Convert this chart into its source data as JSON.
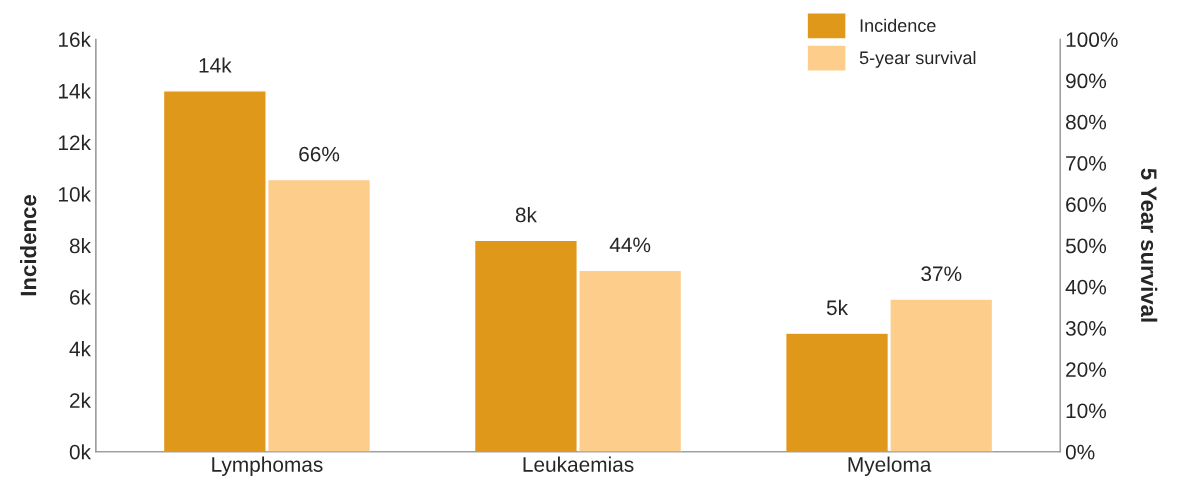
{
  "chart_data": {
    "type": "bar",
    "ylabel": "Incidence",
    "y2label": "5 Year survival",
    "categories": [
      "Lymphomas",
      "Leukaemias",
      "Myeloma"
    ],
    "series": [
      {
        "name": "Incidence",
        "color": "#e0981a",
        "values": [
          14000,
          8200,
          4600
        ],
        "value_labels": [
          "14k",
          "8k",
          "5k"
        ]
      },
      {
        "name": "5-year survival",
        "color": "#fdcd8c",
        "values": [
          66,
          44,
          37
        ],
        "value_labels": [
          "66%",
          "44%",
          "37%"
        ],
        "axis": "y2"
      }
    ],
    "ylim": [
      0,
      16000
    ],
    "yticks": [
      {
        "value": 0,
        "label": "0k"
      },
      {
        "value": 2000,
        "label": "2k"
      },
      {
        "value": 4000,
        "label": "4k"
      },
      {
        "value": 6000,
        "label": "6k"
      },
      {
        "value": 8000,
        "label": "8k"
      },
      {
        "value": 10000,
        "label": "10k"
      },
      {
        "value": 12000,
        "label": "12k"
      },
      {
        "value": 14000,
        "label": "14k"
      },
      {
        "value": 16000,
        "label": "16k"
      }
    ],
    "y2lim": [
      0,
      100
    ],
    "y2ticks": [
      {
        "value": 0,
        "label": "0%"
      },
      {
        "value": 10,
        "label": "10%"
      },
      {
        "value": 20,
        "label": "20%"
      },
      {
        "value": 30,
        "label": "30%"
      },
      {
        "value": 40,
        "label": "40%"
      },
      {
        "value": 50,
        "label": "50%"
      },
      {
        "value": 60,
        "label": "60%"
      },
      {
        "value": 70,
        "label": "70%"
      },
      {
        "value": 80,
        "label": "80%"
      },
      {
        "value": 90,
        "label": "90%"
      },
      {
        "value": 100,
        "label": "100%"
      }
    ],
    "grid": false,
    "legend": "top right"
  }
}
